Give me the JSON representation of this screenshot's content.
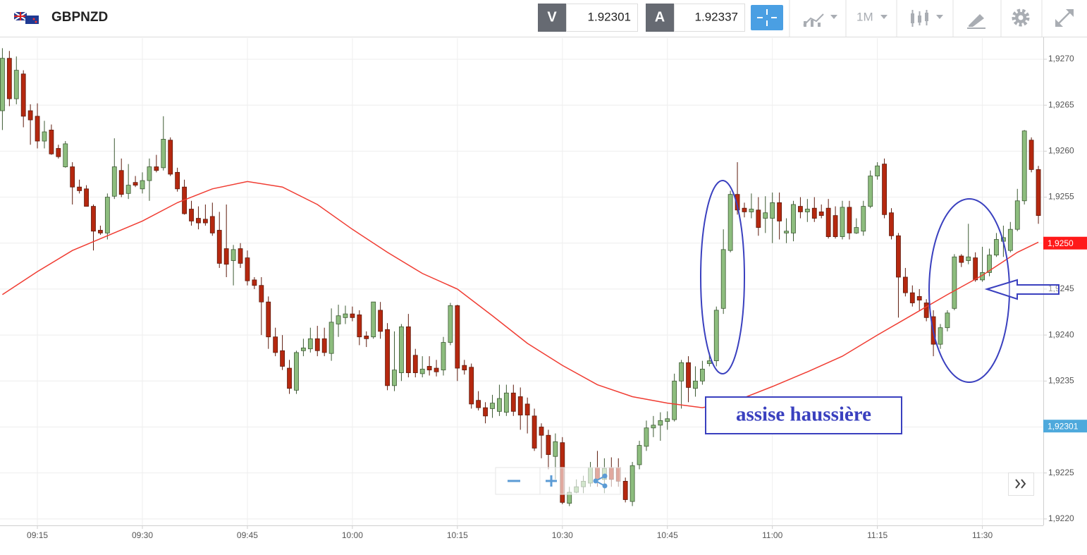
{
  "toolbar": {
    "symbol": "GBPNZD",
    "bid_label": "V",
    "bid": 1.92301,
    "ask_label": "A",
    "ask": 1.92337,
    "timeframe": "1M"
  },
  "chart_data": {
    "type": "candlestick",
    "x": [
      "09:10",
      "09:11",
      "09:12",
      "09:13",
      "09:14",
      "09:15",
      "09:16",
      "09:17",
      "09:18",
      "09:19",
      "09:20",
      "09:21",
      "09:22",
      "09:23",
      "09:24",
      "09:25",
      "09:26",
      "09:27",
      "09:28",
      "09:29",
      "09:30",
      "09:31",
      "09:32",
      "09:33",
      "09:34",
      "09:35",
      "09:36",
      "09:37",
      "09:38",
      "09:39",
      "09:40",
      "09:41",
      "09:42",
      "09:43",
      "09:44",
      "09:45",
      "09:46",
      "09:47",
      "09:48",
      "09:49",
      "09:50",
      "09:51",
      "09:52",
      "09:53",
      "09:54",
      "09:55",
      "09:56",
      "09:57",
      "09:58",
      "09:59",
      "10:00",
      "10:01",
      "10:02",
      "10:03",
      "10:04",
      "10:05",
      "10:06",
      "10:07",
      "10:08",
      "10:09",
      "10:10",
      "10:11",
      "10:12",
      "10:13",
      "10:14",
      "10:15",
      "10:16",
      "10:17",
      "10:18",
      "10:19",
      "10:20",
      "10:21",
      "10:22",
      "10:23",
      "10:24",
      "10:25",
      "10:26",
      "10:27",
      "10:28",
      "10:29",
      "10:30",
      "10:31",
      "10:32",
      "10:33",
      "10:34",
      "10:35",
      "10:36",
      "10:37",
      "10:38",
      "10:39",
      "10:40",
      "10:41",
      "10:42",
      "10:43",
      "10:44",
      "10:45",
      "10:46",
      "10:47",
      "10:48",
      "10:49",
      "10:50",
      "10:51",
      "10:52",
      "10:53",
      "10:54",
      "10:55",
      "10:56",
      "10:57",
      "10:58",
      "10:59",
      "11:00",
      "11:01",
      "11:02",
      "11:03",
      "11:04",
      "11:05",
      "11:06",
      "11:07",
      "11:08",
      "11:09",
      "11:10",
      "11:11",
      "11:12",
      "11:13",
      "11:14",
      "11:15",
      "11:16",
      "11:17",
      "11:18",
      "11:19",
      "11:20",
      "11:21",
      "11:22",
      "11:23",
      "11:24",
      "11:25",
      "11:26",
      "11:27",
      "11:28",
      "11:29",
      "11:30",
      "11:31",
      "11:32",
      "11:33",
      "11:34",
      "11:35",
      "11:36",
      "11:37",
      "11:38"
    ],
    "open": [
      1.92644,
      1.92701,
      1.92657,
      1.92684,
      1.92644,
      1.92638,
      1.92611,
      1.92623,
      1.92603,
      1.92583,
      1.92583,
      1.92561,
      1.92559,
      1.9254,
      1.92514,
      1.92511,
      1.92551,
      1.92579,
      1.92554,
      1.92566,
      1.92559,
      1.92568,
      1.92583,
      1.92582,
      1.92612,
      1.92577,
      1.92561,
      1.92537,
      1.92527,
      1.92526,
      1.92529,
      1.92514,
      1.92494,
      1.92481,
      1.92494,
      1.92484,
      1.9246,
      1.92454,
      1.92436,
      1.92398,
      1.92383,
      1.92364,
      1.9234,
      1.92383,
      1.92385,
      1.92396,
      1.92396,
      1.9238,
      1.92412,
      1.92419,
      1.92423,
      1.92422,
      1.92399,
      1.92398,
      1.92427,
      1.92406,
      1.92345,
      1.92359,
      1.92409,
      1.92378,
      1.92358,
      1.92366,
      1.92364,
      1.92362,
      1.92392,
      1.92432,
      1.92367,
      1.92365,
      1.92329,
      1.92321,
      1.9232,
      1.92317,
      1.92316,
      1.92337,
      1.92333,
      1.92325,
      1.92312,
      1.923,
      1.92291,
      1.92268,
      1.92283,
      1.92217,
      1.92229,
      1.92235,
      1.92239,
      1.92256,
      1.92243,
      1.92256,
      1.92256,
      1.92241,
      1.92219,
      1.92259,
      1.92279,
      1.92299,
      1.92302,
      1.92306,
      1.92308,
      1.9235,
      1.9237,
      1.92342,
      1.9235,
      1.92369,
      1.92372,
      1.92429,
      1.92492,
      1.92553,
      1.92538,
      1.92534,
      1.92536,
      1.92527,
      1.92527,
      1.92544,
      1.92511,
      1.92511,
      1.9254,
      1.92534,
      1.92538,
      1.92534,
      1.92538,
      1.9253,
      1.92507,
      1.92539,
      1.92511,
      1.92513,
      1.9254,
      1.92573,
      1.92586,
      1.92533,
      1.92508,
      1.92463,
      1.92446,
      1.92442,
      1.92435,
      1.9242,
      1.9239,
      1.92408,
      1.92429,
      1.92486,
      1.92481,
      1.92484,
      1.9246,
      1.92468,
      1.92487,
      1.92502,
      1.92492,
      1.92515,
      1.92546,
      1.92612,
      1.9258
    ],
    "high": [
      1.92712,
      1.92709,
      1.92703,
      1.92688,
      1.92651,
      1.92652,
      1.92633,
      1.92629,
      1.92607,
      1.92611,
      1.92588,
      1.92569,
      1.92563,
      1.92542,
      1.92519,
      1.92554,
      1.92614,
      1.92592,
      1.92586,
      1.92573,
      1.92577,
      1.92592,
      1.92596,
      1.92638,
      1.92615,
      1.92582,
      1.92569,
      1.92546,
      1.9254,
      1.92542,
      1.92544,
      1.92534,
      1.92542,
      1.92498,
      1.925,
      1.92492,
      1.92463,
      1.92463,
      1.92442,
      1.92408,
      1.924,
      1.92373,
      1.92383,
      1.92396,
      1.92408,
      1.9241,
      1.92408,
      1.92429,
      1.92433,
      1.92432,
      1.92431,
      1.92427,
      1.92404,
      1.92436,
      1.92436,
      1.92413,
      1.92404,
      1.92412,
      1.92423,
      1.92385,
      1.92377,
      1.92377,
      1.92373,
      1.92398,
      1.92435,
      1.92433,
      1.92373,
      1.92369,
      1.92339,
      1.92327,
      1.92335,
      1.92346,
      1.92346,
      1.92346,
      1.92343,
      1.92332,
      1.9232,
      1.92304,
      1.92297,
      1.92293,
      1.92289,
      1.92235,
      1.92243,
      1.92247,
      1.92262,
      1.92274,
      1.92266,
      1.92267,
      1.92266,
      1.92245,
      1.92262,
      1.92285,
      1.92307,
      1.92312,
      1.92316,
      1.92317,
      1.92358,
      1.92373,
      1.92377,
      1.92366,
      1.92372,
      1.92381,
      1.92431,
      1.92515,
      1.92557,
      1.92588,
      1.92544,
      1.92554,
      1.9255,
      1.92551,
      1.92555,
      1.92555,
      1.92527,
      1.92546,
      1.9255,
      1.92548,
      1.9255,
      1.92542,
      1.92548,
      1.9254,
      1.92546,
      1.92546,
      1.92527,
      1.92546,
      1.92579,
      1.92588,
      1.92592,
      1.92538,
      1.92511,
      1.92473,
      1.92454,
      1.9245,
      1.92439,
      1.92427,
      1.92412,
      1.92427,
      1.92488,
      1.92488,
      1.92521,
      1.9249,
      1.92496,
      1.92494,
      1.92511,
      1.92519,
      1.92523,
      1.92559,
      1.92623,
      1.92615,
      1.92584
    ],
    "low": [
      1.92623,
      1.92649,
      1.92651,
      1.92626,
      1.92607,
      1.92603,
      1.92603,
      1.92596,
      1.92592,
      1.92582,
      1.92542,
      1.92554,
      1.9254,
      1.92492,
      1.92509,
      1.92504,
      1.92548,
      1.9255,
      1.92548,
      1.92561,
      1.92554,
      1.92546,
      1.92577,
      1.92579,
      1.92573,
      1.92556,
      1.92531,
      1.92519,
      1.92515,
      1.92519,
      1.92508,
      1.92473,
      1.92463,
      1.92454,
      1.92473,
      1.92454,
      1.9245,
      1.924,
      1.92385,
      1.92377,
      1.92362,
      1.92336,
      1.92336,
      1.92377,
      1.92381,
      1.92377,
      1.92377,
      1.92372,
      1.92398,
      1.92412,
      1.92415,
      1.92389,
      1.92387,
      1.92396,
      1.92396,
      1.9234,
      1.92339,
      1.9235,
      1.92354,
      1.92354,
      1.92354,
      1.92356,
      1.92355,
      1.92356,
      1.92389,
      1.9235,
      1.92357,
      1.9232,
      1.92318,
      1.92304,
      1.9231,
      1.92312,
      1.92312,
      1.92312,
      1.92297,
      1.92293,
      1.92274,
      1.92266,
      1.92254,
      1.92243,
      1.92216,
      1.92214,
      1.92228,
      1.92228,
      1.92235,
      1.92235,
      1.92228,
      1.92235,
      1.92235,
      1.92218,
      1.92214,
      1.92254,
      1.92274,
      1.92289,
      1.92285,
      1.92297,
      1.92306,
      1.9232,
      1.92327,
      1.92333,
      1.92346,
      1.92366,
      1.92366,
      1.92423,
      1.9249,
      1.92531,
      1.92528,
      1.92527,
      1.92508,
      1.92511,
      1.925,
      1.92504,
      1.925,
      1.92502,
      1.92527,
      1.92523,
      1.92523,
      1.92527,
      1.92505,
      1.92505,
      1.92504,
      1.92504,
      1.9251,
      1.92508,
      1.92538,
      1.92569,
      1.92527,
      1.92504,
      1.92419,
      1.92442,
      1.92431,
      1.92427,
      1.92415,
      1.92377,
      1.92385,
      1.92404,
      1.92427,
      1.92474,
      1.92477,
      1.92458,
      1.92458,
      1.92464,
      1.92485,
      1.92485,
      1.9249,
      1.92513,
      1.92542,
      1.92577,
      1.92521
    ],
    "close": [
      1.92701,
      1.92657,
      1.92688,
      1.92638,
      1.92634,
      1.92611,
      1.92621,
      1.92597,
      1.92594,
      1.92608,
      1.92561,
      1.92557,
      1.9254,
      1.92513,
      1.92511,
      1.9255,
      1.92583,
      1.92553,
      1.92563,
      1.92563,
      1.92568,
      1.92583,
      1.92579,
      1.92613,
      1.92575,
      1.92559,
      1.92532,
      1.92524,
      1.92522,
      1.92522,
      1.92511,
      1.92478,
      1.92477,
      1.92493,
      1.92478,
      1.92459,
      1.92454,
      1.92436,
      1.92398,
      1.92381,
      1.92366,
      1.92342,
      1.92381,
      1.92386,
      1.92396,
      1.92383,
      1.92381,
      1.92414,
      1.92421,
      1.92423,
      1.92419,
      1.92398,
      1.92396,
      1.92436,
      1.92404,
      1.92345,
      1.92362,
      1.92409,
      1.92359,
      1.92359,
      1.92363,
      1.92362,
      1.9236,
      1.92392,
      1.92432,
      1.92364,
      1.92362,
      1.92325,
      1.92321,
      1.92312,
      1.92326,
      1.92331,
      1.92337,
      1.92317,
      1.92313,
      1.92313,
      1.92277,
      1.92291,
      1.9227,
      1.92284,
      1.92218,
      1.92229,
      1.92235,
      1.92241,
      1.92256,
      1.92243,
      1.92255,
      1.92243,
      1.92241,
      1.92221,
      1.92258,
      1.9228,
      1.92299,
      1.92302,
      1.92307,
      1.92309,
      1.9235,
      1.9237,
      1.92343,
      1.9235,
      1.92363,
      1.92372,
      1.92427,
      1.92493,
      1.92553,
      1.92536,
      1.92534,
      1.92537,
      1.92517,
      1.92533,
      1.92544,
      1.92524,
      1.92513,
      1.92542,
      1.92534,
      1.92537,
      1.92527,
      1.9253,
      1.92507,
      1.92507,
      1.92539,
      1.92511,
      1.92517,
      1.9254,
      1.92573,
      1.92584,
      1.92531,
      1.92508,
      1.92463,
      1.92446,
      1.92435,
      1.92438,
      1.92419,
      1.9239,
      1.92408,
      1.92424,
      1.92485,
      1.92479,
      1.92485,
      1.9246,
      1.92468,
      1.92487,
      1.92504,
      1.92506,
      1.92515,
      1.92546,
      1.92622,
      1.9258,
      1.9253
    ],
    "up_color": "#8dbd7e",
    "down_color": "#b5280f",
    "overlay": {
      "type": "line",
      "color": "#f03c32",
      "x": [
        "09:10",
        "09:15",
        "09:20",
        "09:25",
        "09:30",
        "09:35",
        "09:40",
        "09:45",
        "09:50",
        "09:55",
        "10:00",
        "10:05",
        "10:10",
        "10:15",
        "10:20",
        "10:25",
        "10:30",
        "10:35",
        "10:40",
        "10:45",
        "10:50",
        "10:55",
        "11:00",
        "11:05",
        "11:10",
        "11:15",
        "11:20",
        "11:25",
        "11:30",
        "11:35",
        "11:38"
      ],
      "values": [
        1.92444,
        1.92469,
        1.92492,
        1.92508,
        1.92524,
        1.92544,
        1.92559,
        1.92567,
        1.92561,
        1.92542,
        1.92515,
        1.9249,
        1.92467,
        1.9245,
        1.92421,
        1.92391,
        1.92367,
        1.92346,
        1.92333,
        1.92326,
        1.92321,
        1.92329,
        1.92344,
        1.9236,
        1.92377,
        1.924,
        1.92422,
        1.92444,
        1.92465,
        1.9249,
        1.92501
      ]
    },
    "ylim": [
      1.92193,
      1.92723
    ],
    "yticks": [
      {
        "value": 1.922,
        "label": "1,9220"
      },
      {
        "value": 1.9225,
        "label": "1,9225"
      },
      {
        "value": 1.923,
        "label": "1,9230"
      },
      {
        "value": 1.9235,
        "label": "1,9235"
      },
      {
        "value": 1.924,
        "label": "1,9240"
      },
      {
        "value": 1.9245,
        "label": "1,9245"
      },
      {
        "value": 1.925,
        "label": "1,9250"
      },
      {
        "value": 1.9255,
        "label": "1,9255"
      },
      {
        "value": 1.926,
        "label": "1,9260"
      },
      {
        "value": 1.9265,
        "label": "1,9265"
      },
      {
        "value": 1.927,
        "label": "1,9270"
      }
    ],
    "xticks": [
      "09:15",
      "09:30",
      "09:45",
      "10:00",
      "10:15",
      "10:30",
      "10:45",
      "11:00",
      "11:15",
      "11:30"
    ],
    "grid": true,
    "price_labels": [
      {
        "value": 1.925,
        "label": "1,9250",
        "color": "#ff1a1a"
      },
      {
        "value": 1.92301,
        "label": "1,92301",
        "color": "#4ea9dc"
      }
    ],
    "annotation": "assise haussière"
  }
}
